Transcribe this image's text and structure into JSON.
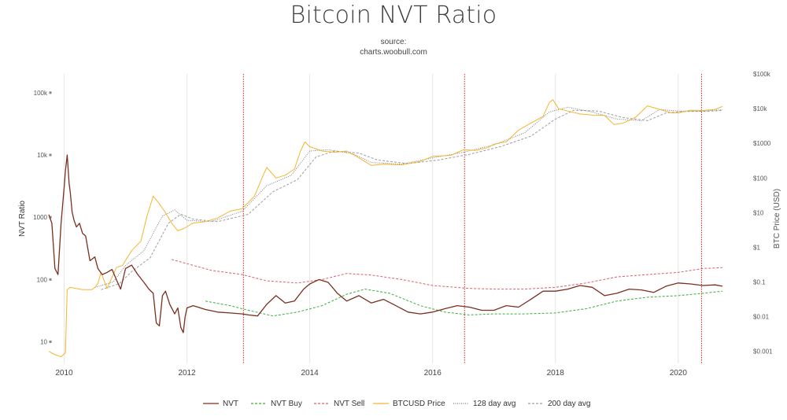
{
  "title": "Bitcoin NVT Ratio",
  "subtitle_line1": "source:",
  "subtitle_line2": "charts.woobull.com",
  "colors": {
    "nvt": "#7b2f1f",
    "nvt_buy": "#3cad3c",
    "nvt_sell": "#d9606e",
    "btc_price": "#f5b52e",
    "avg128": "#7c7c86",
    "avg200": "#9d9da6",
    "event_line": "#e0251f",
    "grid": "#e6e6e6"
  },
  "chart_data": {
    "type": "line",
    "title": "Bitcoin NVT Ratio",
    "ylabel": "NVT Ratio",
    "y2label": "BTC Price (USD)",
    "x_ticks": [
      "2010",
      "2012",
      "2014",
      "2016",
      "2018",
      "2020"
    ],
    "y_ticks": [
      "100k",
      "10k",
      "1000",
      "100",
      "10"
    ],
    "y2_ticks": [
      "$100k",
      "$10k",
      "$1000",
      "$100",
      "$10",
      "$1",
      "$0.1",
      "$0.01",
      "$0.001"
    ],
    "y_scale": "log",
    "y2_scale": "log",
    "xlim": [
      2009.75,
      2020.72
    ],
    "ylim": [
      4.5,
      200000
    ],
    "y2lim": [
      0.00045,
      100000
    ],
    "vertical_markers": [
      2012.92,
      2016.52,
      2020.38
    ],
    "series": [
      {
        "name": "NVT",
        "axis": "left",
        "style": "solid",
        "x": [
          2009.75,
          2009.8,
          2009.85,
          2009.9,
          2009.95,
          2010.0,
          2010.02,
          2010.05,
          2010.08,
          2010.1,
          2010.13,
          2010.16,
          2010.2,
          2010.25,
          2010.3,
          2010.35,
          2010.42,
          2010.5,
          2010.55,
          2010.62,
          2010.7,
          2010.78,
          2010.85,
          2010.92,
          2011.0,
          2011.1,
          2011.2,
          2011.3,
          2011.38,
          2011.45,
          2011.5,
          2011.55,
          2011.6,
          2011.65,
          2011.72,
          2011.8,
          2011.85,
          2011.9,
          2011.94,
          2011.97,
          2012.0,
          2012.1,
          2012.3,
          2012.5,
          2012.7,
          2012.9,
          2013.0,
          2013.15,
          2013.3,
          2013.45,
          2013.6,
          2013.75,
          2013.9,
          2014.0,
          2014.15,
          2014.3,
          2014.45,
          2014.6,
          2014.8,
          2015.0,
          2015.2,
          2015.4,
          2015.6,
          2015.8,
          2016.0,
          2016.2,
          2016.4,
          2016.6,
          2016.8,
          2017.0,
          2017.2,
          2017.4,
          2017.6,
          2017.8,
          2018.0,
          2018.2,
          2018.4,
          2018.6,
          2018.8,
          2019.0,
          2019.2,
          2019.4,
          2019.6,
          2019.8,
          2020.0,
          2020.2,
          2020.4,
          2020.6,
          2020.72
        ],
        "y": [
          1100,
          800,
          150,
          120,
          800,
          3000,
          5500,
          10000,
          3500,
          2500,
          1200,
          900,
          700,
          800,
          550,
          500,
          200,
          230,
          150,
          120,
          130,
          145,
          100,
          70,
          150,
          170,
          120,
          90,
          70,
          60,
          20,
          18,
          55,
          65,
          40,
          28,
          35,
          17,
          14,
          25,
          35,
          38,
          33,
          30,
          29,
          28,
          27,
          26,
          40,
          55,
          42,
          45,
          70,
          85,
          100,
          90,
          60,
          45,
          55,
          42,
          48,
          38,
          30,
          28,
          30,
          34,
          38,
          36,
          32,
          32,
          38,
          36,
          48,
          65,
          65,
          70,
          80,
          75,
          55,
          60,
          70,
          68,
          62,
          78,
          88,
          85,
          80,
          82,
          78
        ]
      },
      {
        "name": "NVT Buy",
        "axis": "left",
        "style": "dashed",
        "x": [
          2012.3,
          2012.7,
          2013.0,
          2013.4,
          2013.8,
          2014.2,
          2014.6,
          2014.9,
          2015.3,
          2015.8,
          2016.2,
          2016.6,
          2017.0,
          2017.5,
          2018.0,
          2018.5,
          2019.0,
          2019.5,
          2020.0,
          2020.4,
          2020.72
        ],
        "y": [
          45,
          38,
          32,
          26,
          30,
          38,
          58,
          70,
          60,
          38,
          30,
          27,
          28,
          28,
          29,
          34,
          45,
          52,
          55,
          60,
          65
        ]
      },
      {
        "name": "NVT Sell",
        "axis": "left",
        "style": "dashed",
        "x": [
          2011.75,
          2012.0,
          2012.4,
          2012.9,
          2013.3,
          2013.8,
          2014.2,
          2014.6,
          2015.0,
          2015.5,
          2016.0,
          2016.6,
          2017.0,
          2017.5,
          2018.0,
          2018.5,
          2019.0,
          2019.5,
          2020.0,
          2020.4,
          2020.72
        ],
        "y": [
          210,
          180,
          140,
          120,
          95,
          88,
          100,
          125,
          118,
          100,
          80,
          72,
          70,
          70,
          75,
          88,
          110,
          120,
          130,
          150,
          155
        ]
      },
      {
        "name": "BTCUSD Price",
        "axis": "right",
        "style": "solid",
        "x": [
          2009.75,
          2009.85,
          2009.95,
          2010.02,
          2010.05,
          2010.1,
          2010.3,
          2010.45,
          2010.5,
          2010.55,
          2010.6,
          2010.7,
          2010.85,
          2010.95,
          2011.1,
          2011.25,
          2011.35,
          2011.45,
          2011.55,
          2011.65,
          2011.75,
          2011.85,
          2011.95,
          2012.1,
          2012.3,
          2012.5,
          2012.7,
          2012.9,
          2013.1,
          2013.25,
          2013.3,
          2013.45,
          2013.6,
          2013.75,
          2013.85,
          2013.92,
          2014.0,
          2014.2,
          2014.4,
          2014.6,
          2014.8,
          2015.0,
          2015.2,
          2015.5,
          2015.8,
          2016.0,
          2016.3,
          2016.5,
          2016.7,
          2016.9,
          2017.0,
          2017.2,
          2017.4,
          2017.6,
          2017.8,
          2017.9,
          2017.96,
          2018.05,
          2018.2,
          2018.4,
          2018.6,
          2018.8,
          2018.95,
          2019.1,
          2019.3,
          2019.5,
          2019.7,
          2019.9,
          2020.0,
          2020.2,
          2020.4,
          2020.6,
          2020.72
        ],
        "y": [
          0.001,
          0.0008,
          0.0007,
          0.0009,
          0.06,
          0.07,
          0.06,
          0.06,
          0.07,
          0.09,
          0.19,
          0.065,
          0.26,
          0.3,
          0.8,
          1.5,
          8,
          30,
          18,
          10,
          5,
          3,
          3.5,
          5,
          5.5,
          7,
          11,
          13,
          30,
          130,
          200,
          100,
          120,
          180,
          600,
          1100,
          800,
          600,
          550,
          600,
          380,
          230,
          250,
          240,
          300,
          420,
          450,
          650,
          620,
          750,
          950,
          1100,
          2400,
          3800,
          6000,
          15000,
          18000,
          10000,
          8500,
          7000,
          6500,
          6400,
          3500,
          3800,
          5500,
          12000,
          9500,
          7500,
          7500,
          9000,
          8800,
          9500,
          11500
        ]
      },
      {
        "name": "128 day avg",
        "axis": "right",
        "style": "dotted",
        "x": [
          2010.5,
          2010.8,
          2011.0,
          2011.3,
          2011.6,
          2011.8,
          2012.0,
          2012.4,
          2012.9,
          2013.3,
          2013.7,
          2014.0,
          2014.3,
          2014.7,
          2015.0,
          2015.5,
          2016.0,
          2016.5,
          2017.0,
          2017.5,
          2017.9,
          2018.2,
          2018.6,
          2019.0,
          2019.4,
          2019.7,
          2020.0,
          2020.4,
          2020.72
        ],
        "y": [
          0.07,
          0.1,
          0.3,
          0.8,
          8,
          12,
          6,
          5.5,
          11,
          60,
          120,
          600,
          650,
          500,
          280,
          250,
          380,
          550,
          900,
          2000,
          8000,
          11000,
          8000,
          5000,
          4500,
          9500,
          8500,
          8500,
          9300
        ]
      },
      {
        "name": "200 day avg",
        "axis": "right",
        "style": "dashed",
        "x": [
          2010.6,
          2010.9,
          2011.1,
          2011.4,
          2011.7,
          2011.9,
          2012.1,
          2012.5,
          2013.0,
          2013.4,
          2013.8,
          2014.1,
          2014.4,
          2014.8,
          2015.1,
          2015.6,
          2016.1,
          2016.6,
          2017.1,
          2017.6,
          2018.0,
          2018.3,
          2018.7,
          2019.1,
          2019.5,
          2019.8,
          2020.1,
          2020.5,
          2020.72
        ],
        "y": [
          0.06,
          0.09,
          0.2,
          0.5,
          5,
          9,
          6.5,
          5.5,
          9,
          40,
          90,
          400,
          600,
          520,
          330,
          260,
          330,
          480,
          800,
          1600,
          5000,
          9000,
          8500,
          5500,
          4500,
          7500,
          8300,
          8400,
          8800
        ]
      }
    ]
  }
}
